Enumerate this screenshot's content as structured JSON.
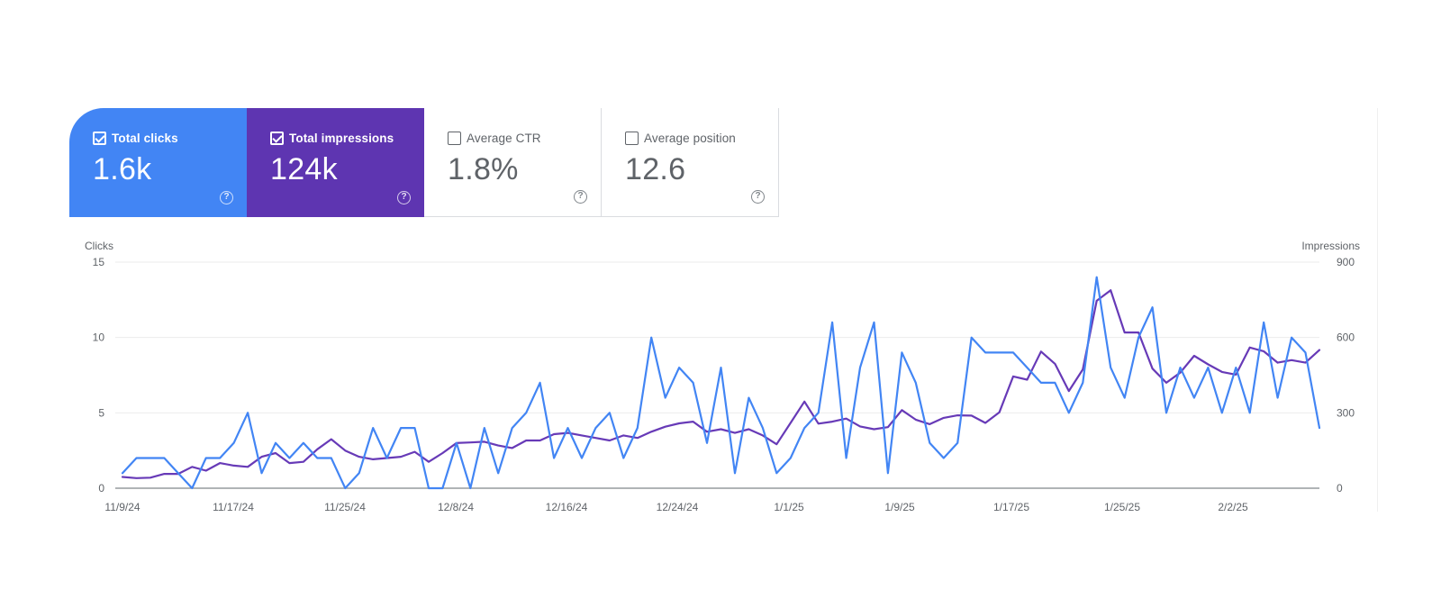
{
  "metrics": {
    "clicks": {
      "label": "Total clicks",
      "value": "1.6k",
      "checked": true
    },
    "impressions": {
      "label": "Total impressions",
      "value": "124k",
      "checked": true
    },
    "ctr": {
      "label": "Average CTR",
      "value": "1.8%",
      "checked": false
    },
    "position": {
      "label": "Average position",
      "value": "12.6",
      "checked": false
    },
    "help_glyph": "?"
  },
  "colors": {
    "clicks": "#4285f4",
    "impressions": "#5e35b1",
    "impressions_line": "#673ab7"
  },
  "chart_data": {
    "type": "line",
    "ylabel_left": "Clicks",
    "ylabel_right": "Impressions",
    "ylim_left": [
      0,
      15
    ],
    "ylim_right": [
      0,
      900
    ],
    "yticks_left": [
      "0",
      "5",
      "10",
      "15"
    ],
    "yticks_right": [
      "0",
      "300",
      "600",
      "900"
    ],
    "x_range": [
      "11/9/24",
      "2/10/25"
    ],
    "xtick_labels": [
      "11/9/24",
      "11/17/24",
      "11/25/24",
      "12/8/24",
      "12/16/24",
      "12/24/24",
      "1/1/25",
      "1/9/25",
      "1/17/25",
      "1/25/25",
      "2/2/25"
    ],
    "grid": true,
    "series": [
      {
        "name": "Clicks",
        "axis": "left",
        "values": [
          1,
          2,
          2,
          2,
          1,
          0,
          2,
          2,
          3,
          5,
          1,
          3,
          2,
          3,
          2,
          2,
          0,
          1,
          4,
          2,
          4,
          4,
          0,
          0,
          3,
          0,
          4,
          1,
          4,
          5,
          7,
          2,
          4,
          2,
          4,
          5,
          2,
          4,
          10,
          6,
          8,
          7,
          3,
          8,
          1,
          6,
          4,
          1,
          2,
          4,
          5,
          11,
          2,
          8,
          11,
          1,
          9,
          7,
          3,
          2,
          3,
          10,
          9,
          9,
          9,
          8,
          7,
          7,
          5,
          7,
          14,
          8,
          6,
          10,
          12,
          5,
          8,
          6,
          8,
          5,
          8,
          5,
          11,
          6,
          10,
          9,
          4
        ]
      },
      {
        "name": "Impressions",
        "axis": "right",
        "values": [
          45,
          40,
          42,
          57,
          57,
          85,
          70,
          100,
          90,
          85,
          125,
          140,
          100,
          105,
          155,
          195,
          150,
          125,
          115,
          120,
          125,
          145,
          105,
          140,
          180,
          182,
          185,
          170,
          160,
          190,
          190,
          215,
          220,
          210,
          200,
          190,
          210,
          200,
          225,
          245,
          258,
          265,
          225,
          235,
          220,
          235,
          210,
          175,
          260,
          345,
          257,
          265,
          277,
          246,
          235,
          243,
          311,
          273,
          255,
          280,
          290,
          289,
          260,
          302,
          445,
          432,
          544,
          495,
          387,
          473,
          746,
          788,
          620,
          620,
          476,
          420,
          460,
          527,
          493,
          463,
          452,
          560,
          545,
          500,
          510,
          500,
          550
        ]
      }
    ]
  }
}
